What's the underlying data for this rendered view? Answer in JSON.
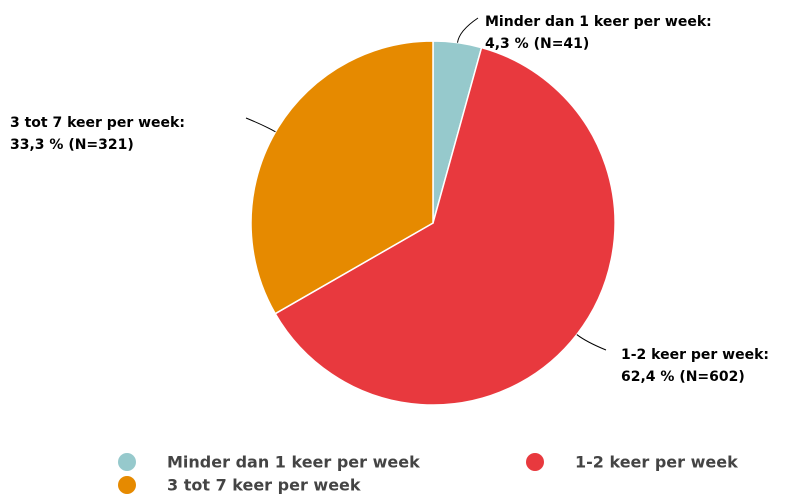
{
  "chart_data": {
    "type": "pie",
    "categories": [
      "Minder dan 1 keer per week",
      "1-2 keer per week",
      "3 tot 7 keer per week"
    ],
    "label_names": [
      "Minder dan 1 keer per week:",
      "1-2 keer per week:",
      "3 tot 7 keer per week:"
    ],
    "values": [
      4.3,
      62.4,
      33.3
    ],
    "value_labels": [
      "4,3 % (N=41)",
      "62,4 % (N=602)",
      "33,3 % (N=321)"
    ],
    "colors": [
      "#96c9cc",
      "#e8393e",
      "#e68a00"
    ]
  }
}
